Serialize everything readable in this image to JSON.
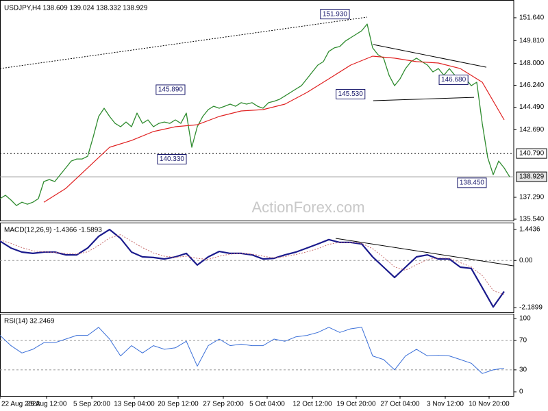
{
  "chart_data": [
    {
      "type": "line",
      "title": "USDJPY,H4  138.609 139.024 138.332 138.929",
      "watermark": "ActionForex.com",
      "xlim": [
        0,
        93.75
      ],
      "ylim": [
        135.43,
        152.95
      ],
      "yticks": [
        {
          "value": 151.64,
          "label": "151.640"
        },
        {
          "value": 149.81,
          "label": "149.810"
        },
        {
          "value": 148.0,
          "label": "148.000"
        },
        {
          "value": 146.24,
          "label": "146.240"
        },
        {
          "value": 144.49,
          "label": "144.490"
        },
        {
          "value": 142.69,
          "label": "142.690"
        },
        {
          "value": 137.29,
          "label": "137.290"
        },
        {
          "value": 135.54,
          "label": "135.540"
        }
      ],
      "hlines": [
        {
          "value": 140.79,
          "label": "140.790",
          "style": "dotted"
        },
        {
          "value": 138.929,
          "label": "138.929",
          "style": "solid"
        }
      ],
      "series": [
        {
          "color": "#2e8b2e",
          "width": 1.3,
          "x": [
            0,
            1,
            2,
            3,
            4,
            5,
            6,
            7,
            8,
            9,
            10,
            11,
            12,
            13,
            14,
            15,
            16,
            17,
            18,
            19,
            20,
            21,
            22,
            23,
            24,
            25,
            26,
            27,
            28,
            29,
            30,
            31,
            32,
            33,
            34,
            35,
            36,
            37,
            38,
            39,
            40,
            41,
            42,
            43,
            44,
            45,
            46,
            47,
            48,
            49,
            50,
            51,
            52,
            53,
            54,
            55,
            56,
            57,
            58,
            59,
            60,
            61,
            62,
            63,
            64,
            65,
            66,
            67,
            68,
            69,
            70,
            71,
            72,
            73,
            74,
            75,
            76,
            77,
            78,
            79,
            80,
            81,
            82,
            83,
            84,
            85,
            86,
            87,
            88,
            89,
            90,
            91,
            92,
            93
          ],
          "values": [
            137.18,
            137.45,
            137.07,
            136.63,
            136.9,
            136.74,
            136.9,
            137.18,
            138.55,
            138.71,
            138.55,
            139.1,
            139.64,
            140.19,
            140.35,
            140.35,
            140.57,
            142.1,
            143.75,
            144.41,
            143.75,
            143.2,
            142.93,
            143.31,
            142.93,
            144.02,
            143.2,
            143.48,
            142.93,
            143.2,
            143.31,
            143.2,
            143.48,
            143.2,
            144.02,
            141.29,
            142.93,
            143.75,
            144.3,
            144.57,
            144.41,
            144.57,
            144.74,
            144.57,
            144.85,
            144.74,
            144.85,
            144.57,
            144.41,
            144.85,
            144.96,
            145.12,
            145.39,
            145.67,
            145.94,
            146.21,
            146.76,
            147.31,
            147.86,
            148.13,
            148.95,
            149.23,
            149.34,
            149.77,
            150.05,
            150.32,
            150.6,
            151.14,
            149.23,
            148.68,
            148.41,
            147.04,
            146.21,
            146.76,
            147.58,
            148.13,
            148.41,
            148.13,
            147.86,
            147.31,
            147.58,
            147.04,
            147.58,
            147.04,
            146.6,
            146.76,
            146.21,
            146.49,
            143.2,
            140.46,
            139.1,
            140.19,
            139.64,
            138.93
          ]
        },
        {
          "color": "#e02020",
          "width": 1.2,
          "x": [
            8,
            12,
            16,
            20,
            24,
            28,
            32,
            36,
            40,
            44,
            48,
            52,
            56,
            60,
            64,
            68,
            72,
            76,
            80,
            84,
            88,
            92
          ],
          "values": [
            136.9,
            138,
            139.64,
            141.29,
            141.83,
            142.55,
            142.93,
            143.09,
            143.75,
            144.19,
            144.3,
            144.74,
            145.67,
            146.76,
            147.86,
            148.57,
            148.41,
            148.13,
            148.02,
            147.58,
            146.49,
            143.48
          ]
        }
      ],
      "trendlines": [
        {
          "x": [
            0,
            67
          ],
          "values": [
            147.58,
            151.69
          ],
          "style": "dotted"
        },
        {
          "x": [
            68.1,
            88.75
          ],
          "values": [
            149.5,
            147.69
          ],
          "style": "solid"
        },
        {
          "x": [
            68.1,
            86.5
          ],
          "values": [
            145.01,
            145.28
          ],
          "style": "solid"
        }
      ],
      "annotations": [
        {
          "text": "151.930",
          "value": 151.93,
          "x": 63.75
        },
        {
          "text": "145.890",
          "value": 145.89,
          "x": 33.75
        },
        {
          "text": "140.330",
          "value": 140.33,
          "x": 34
        },
        {
          "text": "145.530",
          "value": 145.53,
          "x": 66.6
        },
        {
          "text": "146.680",
          "value": 146.68,
          "x": 85.4
        },
        {
          "text": "138.450",
          "value": 138.45,
          "x": 88.75
        }
      ]
    },
    {
      "type": "line",
      "title": "MACD(12,26,9) -1.4366 -1.5893",
      "xlim": [
        0,
        93.75
      ],
      "ylim": [
        -2.413,
        1.73
      ],
      "yticks": [
        {
          "value": 1.4436,
          "label": "1.4436"
        },
        {
          "value": 0,
          "label": "0.00"
        },
        {
          "value": -2.1899,
          "label": "-2.1899"
        }
      ],
      "dashed": [
        0
      ],
      "series": [
        {
          "color": "#1a1a8c",
          "width": 2.2,
          "x": [
            0,
            2,
            4,
            6,
            8,
            10,
            12,
            14,
            16,
            18,
            20,
            22,
            24,
            26,
            28,
            30,
            32,
            34,
            36,
            38,
            40,
            42,
            44,
            46,
            48,
            50,
            52,
            54,
            56,
            58,
            60,
            62,
            64,
            66,
            68,
            70,
            72,
            74,
            76,
            78,
            80,
            82,
            84,
            86,
            88,
            90,
            92
          ],
          "values": [
            0.9,
            0.58,
            0.39,
            0.33,
            0.39,
            0.39,
            0.26,
            0.26,
            0.58,
            1.12,
            1.44,
            1.03,
            0.39,
            0.17,
            0.14,
            0.07,
            0.17,
            0.33,
            -0.21,
            0.17,
            0.42,
            0.33,
            0.33,
            0.26,
            0.07,
            0.1,
            0.26,
            0.39,
            0.58,
            0.77,
            0.97,
            0.84,
            0.84,
            0.77,
            0.17,
            -0.31,
            -0.79,
            -0.31,
            0.17,
            0.26,
            0.07,
            0.07,
            -0.31,
            -0.37,
            -1.26,
            -2.16,
            -1.44
          ]
        },
        {
          "color": "#c87070",
          "width": 1,
          "style": "dotted",
          "x": [
            0,
            2,
            4,
            6,
            8,
            10,
            12,
            14,
            16,
            18,
            20,
            22,
            24,
            26,
            28,
            30,
            32,
            34,
            36,
            38,
            40,
            42,
            44,
            46,
            48,
            50,
            52,
            54,
            56,
            58,
            60,
            62,
            64,
            66,
            68,
            70,
            72,
            74,
            76,
            78,
            80,
            82,
            84,
            86,
            88,
            90,
            92
          ],
          "values": [
            0.95,
            0.8,
            0.6,
            0.45,
            0.4,
            0.38,
            0.33,
            0.3,
            0.4,
            0.7,
            1.05,
            1.2,
            0.9,
            0.6,
            0.35,
            0.2,
            0.15,
            0.2,
            0.1,
            0.05,
            0.2,
            0.3,
            0.33,
            0.3,
            0.2,
            0.12,
            0.18,
            0.28,
            0.4,
            0.55,
            0.75,
            0.85,
            0.85,
            0.8,
            0.55,
            0.15,
            -0.3,
            -0.45,
            -0.2,
            0.05,
            0.12,
            0.1,
            -0.1,
            -0.3,
            -0.7,
            -1.4,
            -1.59
          ]
        }
      ],
      "trendlines": [
        {
          "x": [
            61.25,
            93.75
          ],
          "values": [
            1.03,
            -0.25
          ],
          "style": "solid"
        }
      ]
    },
    {
      "type": "line",
      "title": "RSI(14) 32.2469",
      "xlim": [
        0,
        93.75
      ],
      "ylim": [
        -5.6,
        105.6
      ],
      "yticks": [
        100,
        70,
        30,
        0
      ],
      "dashed": [
        70,
        30
      ],
      "series": [
        {
          "color": "#3a6fd8",
          "width": 1,
          "x": [
            0,
            2,
            4,
            6,
            8,
            10,
            12,
            14,
            16,
            18,
            20,
            22,
            24,
            26,
            28,
            30,
            32,
            34,
            36,
            38,
            40,
            42,
            44,
            46,
            48,
            50,
            52,
            54,
            56,
            58,
            60,
            62,
            64,
            66,
            68,
            70,
            72,
            74,
            76,
            78,
            80,
            82,
            84,
            86,
            88,
            90,
            92
          ],
          "values": [
            77,
            63,
            53,
            58,
            67,
            67,
            72,
            77,
            77,
            88,
            72,
            49,
            63,
            53,
            63,
            58,
            60,
            69,
            35,
            63,
            72,
            63,
            65,
            63,
            63,
            72,
            69,
            75,
            77,
            81,
            88,
            81,
            86,
            88,
            49,
            44,
            30,
            49,
            58,
            49,
            50,
            49,
            44,
            39,
            25,
            30,
            32.25
          ]
        }
      ],
      "xticks": [
        {
          "value": 0,
          "label": "22 Aug 2022"
        },
        {
          "value": 8.5,
          "label": "29 Aug 12:00"
        },
        {
          "value": 16.75,
          "label": "5 Sep 20:00"
        },
        {
          "value": 24.5,
          "label": "13 Sep 04:00"
        },
        {
          "value": 32.5,
          "label": "20 Sep 12:00"
        },
        {
          "value": 40.75,
          "label": "27 Sep 20:00"
        },
        {
          "value": 48.75,
          "label": "5 Oct 04:00"
        },
        {
          "value": 57,
          "label": "12 Oct 12:00"
        },
        {
          "value": 65,
          "label": "19 Oct 20:00"
        },
        {
          "value": 73,
          "label": "27 Oct 04:00"
        },
        {
          "value": 81.25,
          "label": "3 Nov 12:00"
        },
        {
          "value": 89.25,
          "label": "10 Nov 20:00"
        }
      ]
    }
  ]
}
